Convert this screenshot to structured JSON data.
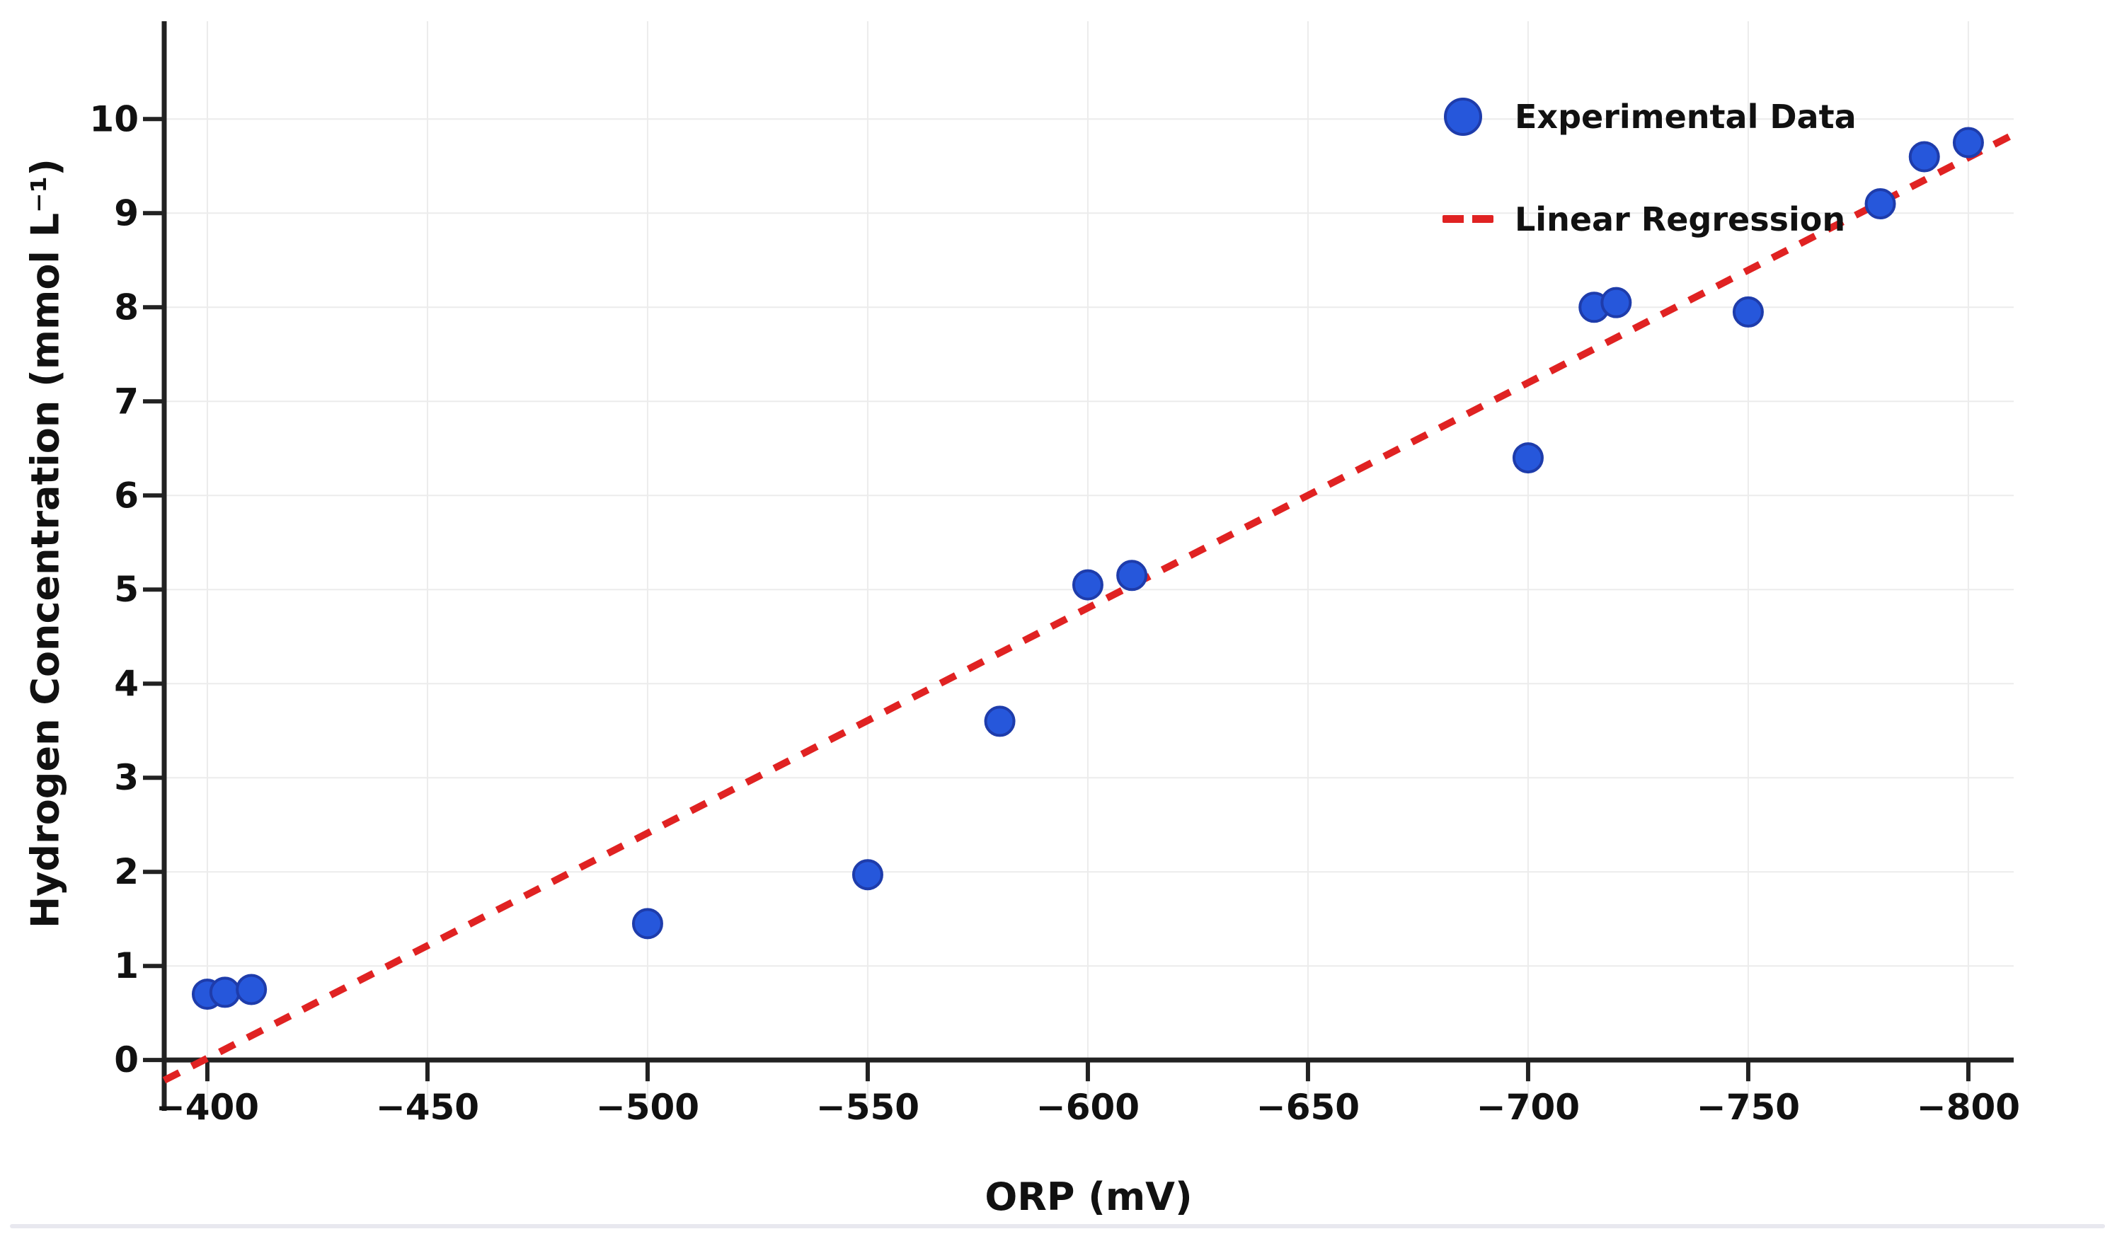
{
  "chart_data": {
    "type": "scatter",
    "title": "",
    "xlabel": "ORP (mV)",
    "ylabel": "Hydrogen Concentration (mmol L⁻¹)",
    "x_axis_reversed": true,
    "xlim": [
      -390.2,
      -810.3
    ],
    "ylim": [
      -0.54,
      11.04
    ],
    "grid": true,
    "legend_position": "upper right",
    "x_ticks": [
      {
        "value": -400,
        "label": "−400"
      },
      {
        "value": -450,
        "label": "−450"
      },
      {
        "value": -500,
        "label": "−500"
      },
      {
        "value": -550,
        "label": "−550"
      },
      {
        "value": -600,
        "label": "−600"
      },
      {
        "value": -650,
        "label": "−650"
      },
      {
        "value": -700,
        "label": "−700"
      },
      {
        "value": -750,
        "label": "−750"
      },
      {
        "value": -800,
        "label": "−800"
      }
    ],
    "y_ticks": [
      {
        "value": 0,
        "label": "0"
      },
      {
        "value": 1,
        "label": "1"
      },
      {
        "value": 2,
        "label": "2"
      },
      {
        "value": 3,
        "label": "3"
      },
      {
        "value": 4,
        "label": "4"
      },
      {
        "value": 5,
        "label": "5"
      },
      {
        "value": 6,
        "label": "6"
      },
      {
        "value": 7,
        "label": "7"
      },
      {
        "value": 8,
        "label": "8"
      },
      {
        "value": 9,
        "label": "9"
      },
      {
        "value": 10,
        "label": "10"
      }
    ],
    "series": [
      {
        "name": "Experimental Data",
        "type": "scatter",
        "points": [
          [
            -400,
            0.7
          ],
          [
            -404,
            0.72
          ],
          [
            -410,
            0.75
          ],
          [
            -500,
            1.45
          ],
          [
            -550,
            1.97
          ],
          [
            -580,
            3.6
          ],
          [
            -600,
            5.05
          ],
          [
            -610,
            5.15
          ],
          [
            -700,
            6.4
          ],
          [
            -715,
            8.0
          ],
          [
            -720,
            8.05
          ],
          [
            -750,
            7.95
          ],
          [
            -780,
            9.1
          ],
          [
            -790,
            9.6
          ],
          [
            -800,
            9.75
          ]
        ]
      },
      {
        "name": "Linear Regression",
        "type": "line",
        "style": "dashed",
        "slope": -0.02393,
        "intercept": -9.553
      }
    ]
  },
  "colors": {
    "point_fill": "#2657db",
    "point_edge": "#1e3cab",
    "regression_red": "#e02222",
    "grid": "#ececec",
    "axis": "#222222",
    "text": "#111111",
    "footer_divider": "#e8e8ef"
  }
}
